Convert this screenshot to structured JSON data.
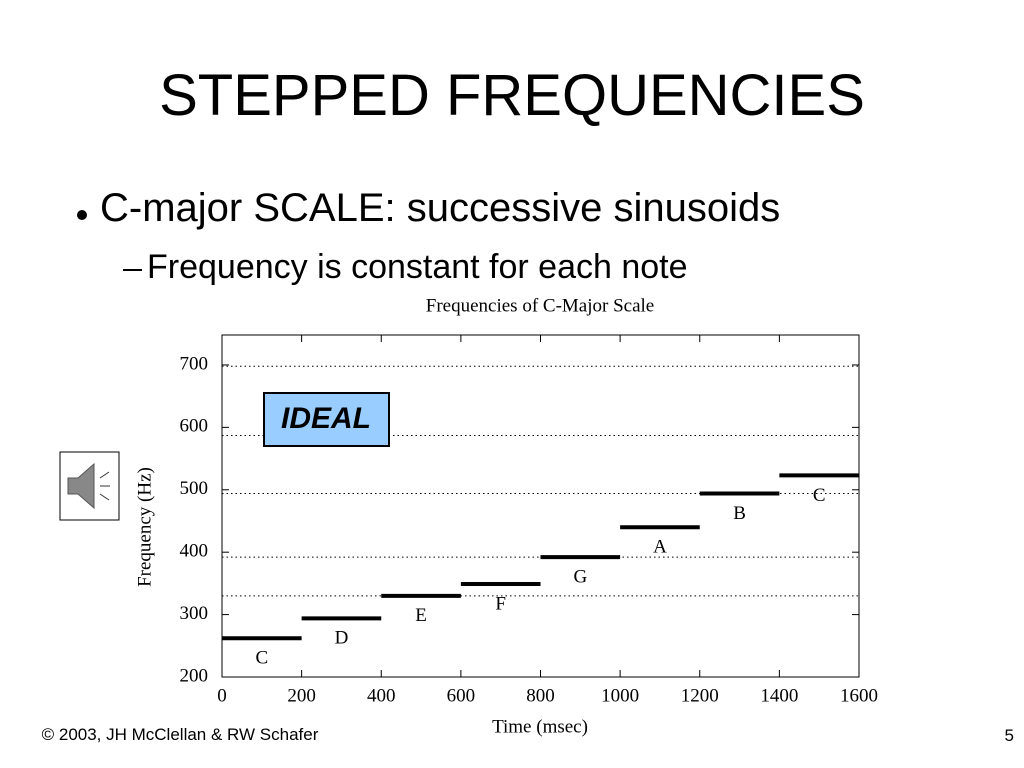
{
  "slide": {
    "title": "STEPPED FREQUENCIES",
    "bullet": "C-major SCALE: successive sinusoids",
    "sub_bullet": "Frequency is constant for each note",
    "footer": "© 2003, JH McClellan & RW Schafer",
    "page_number": "5"
  },
  "chart_data": {
    "type": "segments",
    "title": "Frequencies of C-Major Scale",
    "x_label": "Time (msec)",
    "y_label": "Frequency (Hz)",
    "annotation": "IDEAL",
    "labels": [
      "C",
      "D",
      "E",
      "F",
      "G",
      "A",
      "B",
      "C"
    ],
    "x_start": [
      0,
      200,
      400,
      600,
      800,
      1000,
      1200,
      1400
    ],
    "x_end": [
      200,
      400,
      600,
      800,
      1000,
      1200,
      1400,
      1600
    ],
    "values": [
      262,
      294,
      330,
      349,
      392,
      440,
      494,
      523
    ],
    "color": "#000000",
    "reference_lines": [
      330,
      392,
      494,
      587,
      698
    ],
    "xlim": [
      0,
      1600
    ],
    "xticks": [
      0,
      200,
      400,
      600,
      800,
      1000,
      1200,
      1400,
      1600
    ],
    "ylim": [
      200,
      748
    ],
    "yticks": [
      200,
      300,
      400,
      500,
      600,
      700
    ]
  }
}
